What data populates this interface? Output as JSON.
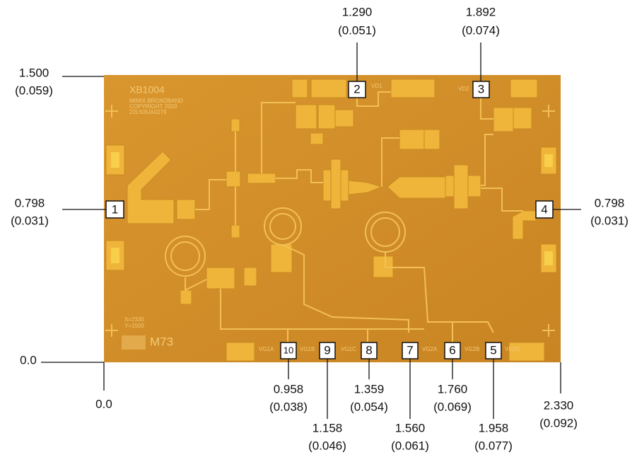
{
  "dimensions": [
    {
      "mm": "1.290",
      "inch": "(0.051)"
    },
    {
      "mm": "1.892",
      "inch": "(0.074)"
    },
    {
      "mm": "1.500",
      "inch": "(0.059)"
    },
    {
      "mm": "0.798",
      "inch": "(0.031)"
    },
    {
      "mm": "0.798",
      "inch": "(0.031)"
    },
    {
      "mm": "0.0"
    },
    {
      "mm": "0.0"
    },
    {
      "mm": "0.958",
      "inch": "(0.038)"
    },
    {
      "mm": "1.158",
      "inch": "(0.046)"
    },
    {
      "mm": "1.359",
      "inch": "(0.054)"
    },
    {
      "mm": "1.560",
      "inch": "(0.061)"
    },
    {
      "mm": "1.760",
      "inch": "(0.069)"
    },
    {
      "mm": "1.958",
      "inch": "(0.077)"
    },
    {
      "mm": "2.330",
      "inch": "(0.092)"
    }
  ],
  "pads": [
    "1",
    "2",
    "3",
    "4",
    "5",
    "6",
    "7",
    "8",
    "9",
    "10"
  ],
  "die_labels": {
    "part": "XB1004",
    "maker": "MIMIX BROADBAND",
    "copyright": "COPYRIGHT 2003",
    "lot": "22LN3UA0279",
    "vd1": "VD1",
    "vd2": "VD2",
    "vg1a": "VG1A",
    "vg1b": "VG1B",
    "vg1c": "VG1C",
    "vg2a": "VG2A",
    "vg2b": "VG2B",
    "vg2c": "VG2C",
    "xsize": "X=2330",
    "ysize": "Y=1500",
    "mark": "M73"
  }
}
